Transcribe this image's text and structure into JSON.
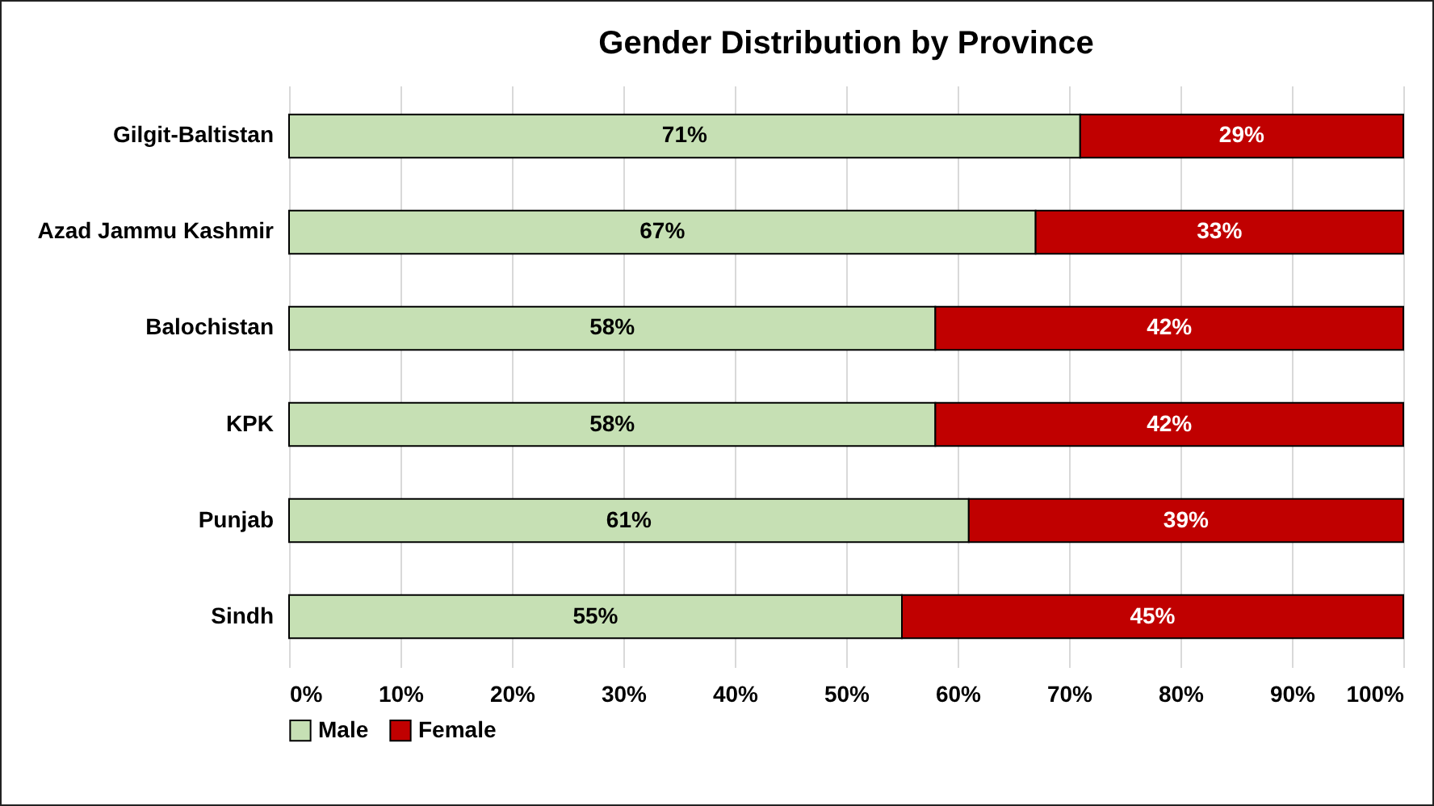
{
  "chart_data": {
    "type": "bar",
    "orientation": "horizontal",
    "stacked": true,
    "title": "Gender Distribution by Province",
    "categories": [
      "Gilgit-Baltistan",
      "Azad Jammu Kashmir",
      "Balochistan",
      "KPK",
      "Punjab",
      "Sindh"
    ],
    "series": [
      {
        "name": "Male",
        "color": "#c6e0b4",
        "values": [
          71,
          67,
          58,
          58,
          61,
          55
        ],
        "value_labels": [
          "71%",
          "67%",
          "58%",
          "58%",
          "61%",
          "55%"
        ]
      },
      {
        "name": "Female",
        "color": "#c00000",
        "values": [
          29,
          33,
          42,
          42,
          39,
          45
        ],
        "value_labels": [
          "29%",
          "33%",
          "42%",
          "42%",
          "39%",
          "45%"
        ]
      }
    ],
    "xlim": [
      0,
      100
    ],
    "xticks": [
      {
        "value": 0,
        "label": "0%"
      },
      {
        "value": 10,
        "label": "10%"
      },
      {
        "value": 20,
        "label": "20%"
      },
      {
        "value": 30,
        "label": "30%"
      },
      {
        "value": 40,
        "label": "40%"
      },
      {
        "value": 50,
        "label": "50%"
      },
      {
        "value": 60,
        "label": "60%"
      },
      {
        "value": 70,
        "label": "70%"
      },
      {
        "value": 80,
        "label": "80%"
      },
      {
        "value": 90,
        "label": "90%"
      },
      {
        "value": 100,
        "label": "100%"
      }
    ],
    "grid": "x",
    "legend": "bottom"
  }
}
